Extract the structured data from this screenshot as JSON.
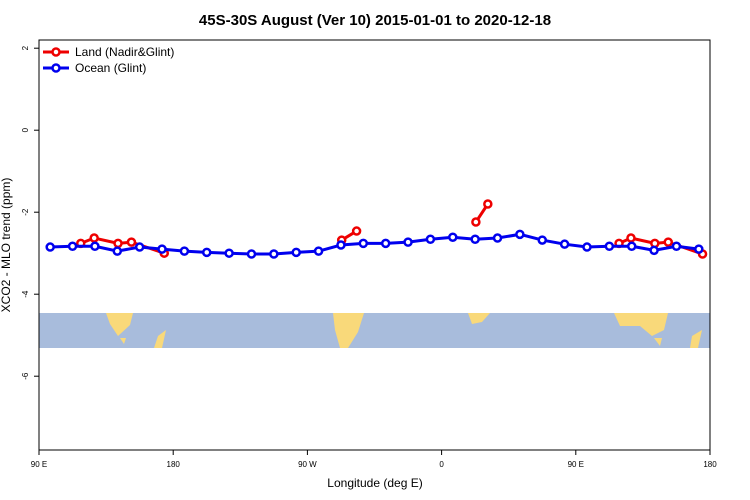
{
  "chart_data": {
    "type": "line",
    "title": "45S-30S August (Ver 10)   2015-01-01 to 2020-12-18",
    "x_label": "Longitude (deg E)",
    "y_label": "XCO2 - MLO trend (ppm)",
    "xlim": [
      90,
      540
    ],
    "xticks": [
      {
        "value": 90,
        "label": "90 E"
      },
      {
        "value": 180,
        "label": "180"
      },
      {
        "value": 270,
        "label": "90 W"
      },
      {
        "value": 360,
        "label": "0"
      },
      {
        "value": 450,
        "label": "90 E"
      },
      {
        "value": 540,
        "label": "180"
      }
    ],
    "ylim": [
      -7.8,
      2.2
    ],
    "yticks": [
      2,
      0,
      -2,
      -4,
      -6
    ],
    "legend": "top-left",
    "series": [
      {
        "name": "Land (Nadir&Glint)",
        "color": "#ee0000",
        "x": [
          118,
          127,
          143,
          152,
          174,
          null,
          293,
          303,
          null,
          383,
          391,
          null,
          479,
          487,
          503,
          512,
          535
        ],
        "values": [
          -2.76,
          -2.63,
          -2.76,
          -2.73,
          -3.0,
          null,
          -2.68,
          -2.46,
          null,
          -2.24,
          -1.8,
          null,
          -2.76,
          -2.63,
          -2.76,
          -2.73,
          -3.02
        ]
      },
      {
        "name": "Ocean (Glint)",
        "color": "#0000ee",
        "x": [
          97.5,
          112.5,
          127.5,
          142.5,
          157.5,
          172.5,
          187.5,
          202.5,
          217.5,
          232.5,
          247.5,
          262.5,
          277.5,
          292.5,
          307.5,
          322.5,
          337.5,
          352.5,
          367.5,
          382.5,
          397.5,
          412.5,
          427.5,
          442.5,
          457.5,
          472.5,
          487.5,
          502.5,
          517.5,
          532.5
        ],
        "values": [
          -2.85,
          -2.83,
          -2.83,
          -2.95,
          -2.85,
          -2.9,
          -2.95,
          -2.98,
          -3.0,
          -3.02,
          -3.02,
          -2.98,
          -2.95,
          -2.8,
          -2.76,
          -2.76,
          -2.73,
          -2.66,
          -2.61,
          -2.66,
          -2.63,
          -2.54,
          -2.68,
          -2.78,
          -2.85,
          -2.83,
          -2.83,
          -2.93,
          -2.83,
          -2.9
        ]
      }
    ]
  }
}
